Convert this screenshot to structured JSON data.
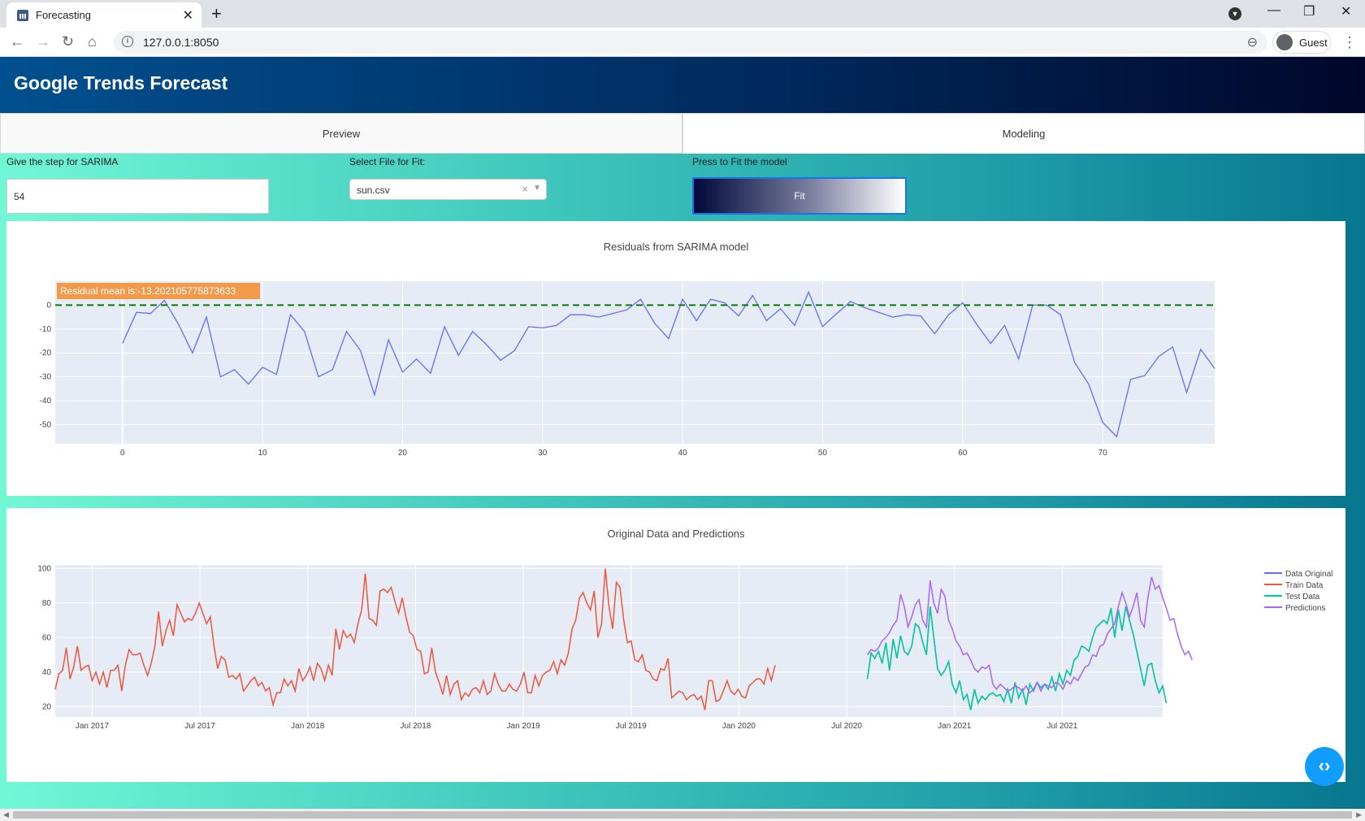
{
  "browser": {
    "tab_title": "Forecasting",
    "url": "127.0.0.1:8050",
    "profile_label": "Guest",
    "icons": [
      "back-icon",
      "forward-icon",
      "reload-icon",
      "home-icon",
      "info-icon",
      "zoom-icon",
      "profile-icon",
      "menu-icon"
    ]
  },
  "app": {
    "title": "Google Trends Forecast",
    "tabs": [
      {
        "label": "Preview",
        "selected": false
      },
      {
        "label": "Modeling",
        "selected": true
      }
    ],
    "controls": {
      "step_label": "Give the step for SARIMA",
      "step_value": "54",
      "file_label": "Select File for Fit:",
      "file_value": "sun.csv",
      "fit_label": "Press to Fit the model",
      "fit_button": "Fit"
    }
  },
  "chart_data": [
    {
      "type": "line",
      "title": "Residuals from SARIMA model",
      "annotation": "Residual mean is:-13.202105775873633",
      "annotation_color": "#f39a4a",
      "x_ticks": [
        0,
        10,
        20,
        30,
        40,
        50,
        60,
        70
      ],
      "y_ticks": [
        0,
        -10,
        -20,
        -30,
        -40,
        -50
      ],
      "xlim": [
        -4.8,
        78
      ],
      "ylim": [
        -58,
        10
      ],
      "reference_line": {
        "y": 0,
        "color": "#008000",
        "style": "dashed"
      },
      "series": [
        {
          "color": "#636efa",
          "x": [
            0,
            1,
            2,
            3,
            4,
            5,
            6,
            7,
            8,
            9,
            10,
            11,
            12,
            13,
            14,
            15,
            16,
            17,
            18,
            19,
            20,
            21,
            22,
            23,
            24,
            25,
            26,
            27,
            28,
            29,
            30,
            31,
            32,
            33,
            34,
            35,
            36,
            37,
            38,
            39,
            40,
            41,
            42,
            43,
            44,
            45,
            46,
            47,
            48,
            49,
            50,
            51,
            52,
            53,
            54,
            55,
            56,
            57,
            58,
            59,
            60,
            61,
            62,
            63,
            64,
            65,
            66,
            67,
            68,
            69,
            70,
            71,
            72,
            73,
            74,
            75,
            76,
            77,
            78
          ],
          "values": [
            -16,
            -3,
            -3.5,
            2,
            -8,
            -20,
            -5,
            -30,
            -27,
            -33,
            -26,
            -29,
            -4,
            -11,
            -30,
            -27,
            -11,
            -19,
            -37.5,
            -14.5,
            -28,
            -22.5,
            -28.5,
            -9,
            -21,
            -11,
            -16.5,
            -23,
            -19,
            -9,
            -9.5,
            -8.5,
            -4,
            -4,
            -5,
            -3.5,
            -2,
            2.5,
            -7.5,
            -14,
            2.5,
            -6.5,
            2.5,
            1,
            -4.5,
            4,
            -6.5,
            -1.5,
            -8.5,
            5.5,
            -9,
            -3.5,
            1.5,
            -1,
            -3,
            -5,
            -4,
            -4.5,
            -12,
            -4,
            1,
            -8,
            -16,
            -8.5,
            -22.5,
            0,
            0,
            -4,
            -24,
            -33,
            -49,
            -55,
            -31,
            -29.5,
            -21.5,
            -17.5,
            -36.5,
            -18.5,
            -26.5
          ]
        }
      ]
    },
    {
      "type": "line",
      "title": "Original Data and Predictions",
      "x_ticks": [
        "Jan 2017",
        "Jul 2017",
        "Jan 2018",
        "Jul 2018",
        "Jan 2019",
        "Jul 2019",
        "Jan 2020",
        "Jul 2020",
        "Jan 2021",
        "Jul 2021"
      ],
      "y_ticks": [
        20,
        40,
        60,
        80,
        100
      ],
      "xlim": [
        -10,
        290
      ],
      "ylim": [
        14,
        102
      ],
      "legend_position": "top-right",
      "series": [
        {
          "name": "Data Original",
          "color": "#636efa",
          "x0": 210,
          "values": [
            36,
            51,
            48,
            52,
            45,
            57,
            41,
            59,
            48,
            61,
            52,
            50,
            55,
            68,
            66,
            57,
            50,
            78,
            60,
            42,
            38,
            41,
            46,
            33,
            28,
            35,
            24,
            27,
            18,
            30,
            22,
            26,
            24,
            27,
            28,
            26,
            27,
            23,
            30,
            22,
            34,
            25,
            30,
            21,
            33,
            29,
            34,
            31,
            33,
            30,
            37,
            29,
            39,
            33,
            41,
            38,
            47,
            49,
            55,
            54,
            52,
            60,
            66,
            68,
            70,
            68,
            77,
            60,
            76,
            64,
            78,
            70,
            62,
            52,
            42,
            32,
            44,
            45,
            35,
            28,
            32,
            22
          ]
        },
        {
          "name": "Train Data",
          "color": "#ef553b",
          "x0": -10,
          "values": [
            30,
            39,
            41,
            54,
            36,
            43,
            55,
            41,
            43,
            44,
            35,
            40,
            33,
            40,
            31,
            41,
            41,
            44,
            29,
            44,
            53,
            50,
            50,
            51,
            44,
            38,
            45,
            55,
            75,
            55,
            64,
            70,
            61,
            79,
            74,
            69,
            71,
            70,
            74,
            80,
            74,
            68,
            72,
            55,
            42,
            49,
            47,
            37,
            38,
            36,
            39,
            29,
            32,
            35,
            37,
            32,
            34,
            29,
            31,
            21,
            28,
            28,
            36,
            32,
            35,
            29,
            42,
            35,
            38,
            43,
            35,
            45,
            42,
            35,
            44,
            38,
            65,
            53,
            64,
            60,
            62,
            57,
            68,
            76,
            97,
            71,
            70,
            67,
            87,
            88,
            86,
            89,
            81,
            74,
            83,
            72,
            63,
            61,
            53,
            52,
            39,
            40,
            54,
            40,
            34,
            27,
            38,
            27,
            33,
            35,
            24,
            28,
            26,
            30,
            31,
            28,
            35,
            27,
            29,
            39,
            33,
            29,
            29,
            33,
            30,
            29,
            33,
            40,
            28,
            28,
            38,
            32,
            38,
            40,
            41,
            46,
            39,
            47,
            44,
            51,
            65,
            70,
            83,
            86,
            80,
            76,
            87,
            60,
            68,
            100,
            78,
            65,
            92,
            89,
            70,
            57,
            58,
            47,
            46,
            50,
            41,
            40,
            36,
            35,
            42,
            41,
            48,
            25,
            27,
            29,
            28,
            24,
            26,
            27,
            24,
            26,
            18,
            35,
            35,
            23,
            24,
            29,
            35,
            29,
            27,
            30,
            26,
            25,
            32,
            34,
            36,
            36,
            33,
            42,
            35,
            44
          ]
        },
        {
          "name": "Test Data",
          "color": "#00cc96",
          "x0": 210,
          "values": [
            36,
            51,
            48,
            52,
            45,
            57,
            41,
            59,
            48,
            61,
            52,
            50,
            55,
            68,
            66,
            57,
            50,
            78,
            60,
            42,
            38,
            41,
            46,
            33,
            28,
            35,
            24,
            27,
            18,
            30,
            22,
            26,
            24,
            27,
            28,
            26,
            27,
            23,
            30,
            22,
            34,
            25,
            30,
            21,
            33,
            29,
            34,
            31,
            33,
            30,
            37,
            29,
            39,
            33,
            41,
            38,
            47,
            49,
            55,
            54,
            52,
            60,
            66,
            68,
            70,
            68,
            77,
            60,
            76,
            64,
            78,
            70,
            62,
            52,
            42,
            32,
            44,
            45,
            35,
            28,
            32,
            22
          ]
        },
        {
          "name": "Predictions",
          "color": "#ab63fa",
          "x0": 210,
          "values": [
            50,
            53,
            52,
            54,
            58,
            60,
            63,
            67,
            70,
            85,
            78,
            66,
            72,
            79,
            82,
            70,
            66,
            93,
            80,
            74,
            88,
            84,
            70,
            65,
            58,
            55,
            50,
            51,
            47,
            42,
            40,
            43,
            42,
            44,
            33,
            30,
            33,
            31,
            29,
            30,
            32,
            31,
            29,
            32,
            28,
            30,
            34,
            29,
            33,
            32,
            31,
            34,
            33,
            30,
            35,
            33,
            37,
            35,
            39,
            43,
            44,
            50,
            49,
            55,
            56,
            62,
            65,
            68,
            78,
            86,
            80,
            72,
            78,
            86,
            70,
            66,
            83,
            95,
            88,
            90,
            83,
            77,
            70,
            71,
            62,
            55,
            50,
            52,
            47
          ]
        }
      ]
    }
  ]
}
